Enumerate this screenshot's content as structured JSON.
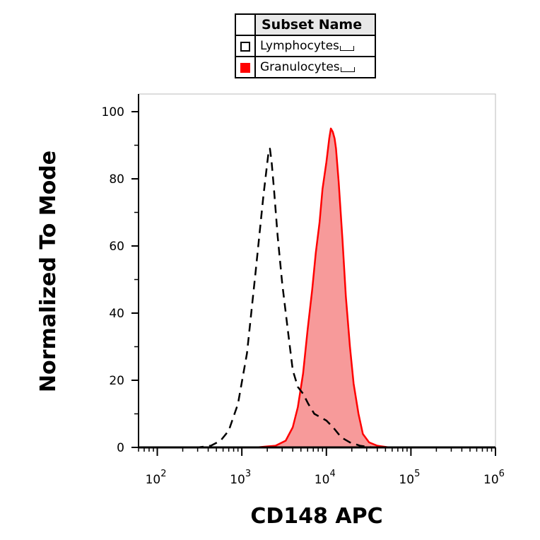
{
  "legend": {
    "header": "Subset Name",
    "entries": [
      {
        "label": "Lymphocytes",
        "style": "dashed-outline",
        "color": "#000000"
      },
      {
        "label": "Granulocytes",
        "style": "filled",
        "color": "#ff0000"
      }
    ]
  },
  "chart_data": {
    "type": "area",
    "xlabel": "CD148 APC",
    "ylabel": "Normalized To Mode",
    "xscale": "log",
    "xlim": [
      60,
      1000000
    ],
    "ylim": [
      0,
      100
    ],
    "yticks": [
      0,
      20,
      40,
      60,
      80,
      100
    ],
    "xticks": [
      {
        "value": 100,
        "label": "10",
        "exp": "2"
      },
      {
        "value": 1000,
        "label": "10",
        "exp": "3"
      },
      {
        "value": 10000,
        "label": "10",
        "exp": "4"
      },
      {
        "value": 100000,
        "label": "10",
        "exp": "5"
      },
      {
        "value": 1000000,
        "label": "10",
        "exp": "6"
      }
    ],
    "grid": false,
    "series": [
      {
        "name": "Lymphocytes",
        "style": "dashed",
        "color": "#000000",
        "x": [
          60,
          300,
          430,
          560,
          700,
          900,
          1150,
          1450,
          1800,
          2050,
          2150,
          2250,
          2400,
          2650,
          3000,
          3500,
          4000,
          4600,
          5300,
          6100,
          7200,
          8500,
          10000,
          12000,
          15000,
          19000,
          25000,
          35000,
          1000000
        ],
        "y": [
          0,
          0,
          0.5,
          2,
          5,
          13,
          28,
          52,
          75,
          87,
          89,
          85,
          77,
          63,
          49,
          35,
          23,
          18,
          16,
          13,
          10,
          9,
          8,
          6,
          3,
          1.5,
          0.5,
          0,
          0
        ]
      },
      {
        "name": "Granulocytes",
        "style": "filled",
        "color": "#ff0000",
        "fill": "#f79a9a",
        "x": [
          60,
          1500,
          2500,
          3300,
          4000,
          4600,
          5300,
          6000,
          6800,
          7500,
          8300,
          9000,
          10000,
          10800,
          11300,
          11900,
          12500,
          13000,
          14000,
          15500,
          17000,
          19000,
          21000,
          24000,
          27000,
          32000,
          40000,
          55000,
          1000000
        ],
        "y": [
          0,
          0,
          0.5,
          2,
          6,
          12,
          22,
          35,
          47,
          58,
          67,
          77,
          85,
          92,
          95,
          94,
          92,
          89,
          79,
          62,
          45,
          30,
          19,
          10,
          4,
          1.5,
          0.5,
          0,
          0
        ]
      }
    ]
  }
}
